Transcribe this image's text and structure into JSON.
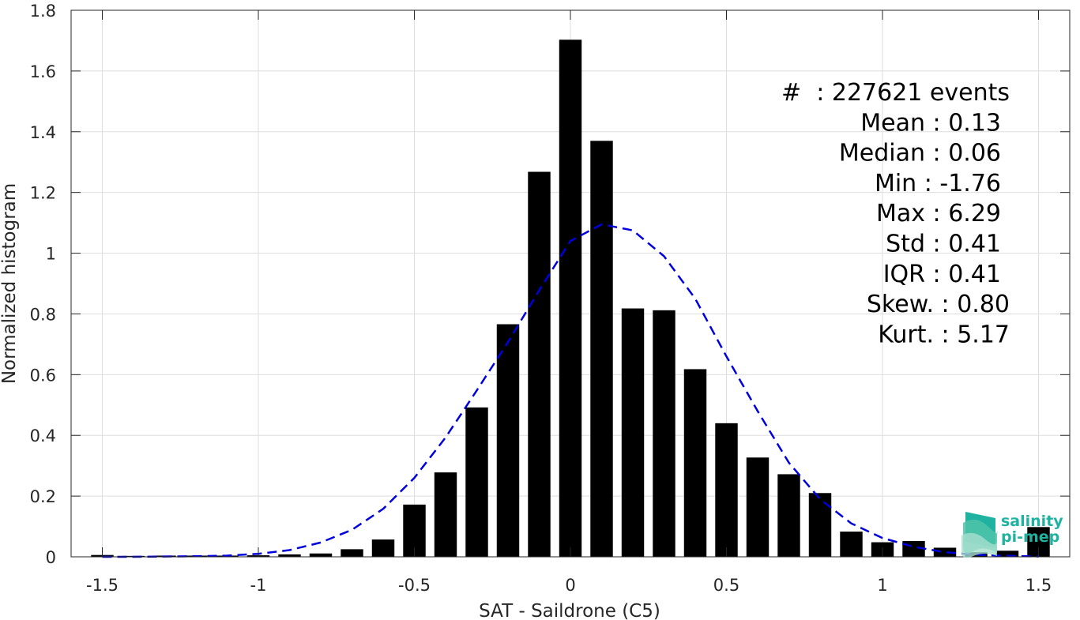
{
  "chart_data": {
    "type": "bar",
    "title": "",
    "xlabel": "SAT - Saildrone (C5)",
    "ylabel": "Normalized histogram",
    "xlim": [
      -1.6,
      1.6
    ],
    "ylim": [
      0,
      1.8
    ],
    "grid": true,
    "x_ticks": [
      -1.5,
      -1,
      -0.5,
      0,
      0.5,
      1,
      1.5
    ],
    "x_tick_labels": [
      "-1.5",
      "-1",
      "-0.5",
      "0",
      "0.5",
      "1",
      "1.5"
    ],
    "y_ticks": [
      0,
      0.2,
      0.4,
      0.6,
      0.8,
      1,
      1.2,
      1.4,
      1.6,
      1.8
    ],
    "y_tick_labels": [
      "0",
      "0.2",
      "0.4",
      "0.6",
      "0.8",
      "1",
      "1.2",
      "1.4",
      "1.6",
      "1.8"
    ],
    "bar_color": "#000000",
    "bars": {
      "x": [
        -1.5,
        -1.4,
        -1.3,
        -1.2,
        -1.1,
        -1.0,
        -0.9,
        -0.8,
        -0.7,
        -0.6,
        -0.5,
        -0.4,
        -0.3,
        -0.2,
        -0.1,
        0.0,
        0.1,
        0.2,
        0.3,
        0.4,
        0.5,
        0.6,
        0.7,
        0.8,
        0.9,
        1.0,
        1.1,
        1.2,
        1.3,
        1.4,
        1.5
      ],
      "values": [
        0.006,
        0.003,
        0.004,
        0.004,
        0.004,
        0.005,
        0.008,
        0.011,
        0.025,
        0.057,
        0.172,
        0.278,
        0.492,
        0.766,
        1.268,
        1.703,
        1.37,
        0.818,
        0.812,
        0.618,
        0.44,
        0.327,
        0.272,
        0.21,
        0.083,
        0.048,
        0.052,
        0.03,
        0.015,
        0.02,
        0.098
      ]
    },
    "fit_curve": {
      "style": "dashed",
      "color": "#0000dd",
      "x": [
        -1.5,
        -1.4,
        -1.3,
        -1.2,
        -1.1,
        -1.0,
        -0.9,
        -0.8,
        -0.7,
        -0.6,
        -0.5,
        -0.4,
        -0.3,
        -0.2,
        -0.1,
        0.0,
        0.1,
        0.2,
        0.3,
        0.4,
        0.5,
        0.6,
        0.7,
        0.8,
        0.9,
        1.0,
        1.1,
        1.2,
        1.3,
        1.4,
        1.5
      ],
      "y": [
        0.0,
        0.0,
        0.001,
        0.002,
        0.004,
        0.01,
        0.022,
        0.047,
        0.089,
        0.158,
        0.26,
        0.393,
        0.548,
        0.707,
        0.878,
        1.04,
        1.095,
        1.075,
        0.99,
        0.85,
        0.66,
        0.48,
        0.31,
        0.19,
        0.11,
        0.062,
        0.033,
        0.015,
        0.007,
        0.003,
        0.001
      ]
    },
    "annotations": {
      "position": "top-right",
      "lines": [
        "#  : 227621 events",
        "Mean : 0.13",
        "Median : 0.06",
        "Min : -1.76",
        "Max : 6.29",
        "Std : 0.41",
        "IQR : 0.41",
        "Skew. : 0.80",
        "Kurt. : 5.17"
      ]
    }
  },
  "logo": {
    "line1": "salinity",
    "line2": "pi-mep",
    "colors": [
      "#20b2a0",
      "#4fc3a8",
      "#a8ded0"
    ]
  }
}
